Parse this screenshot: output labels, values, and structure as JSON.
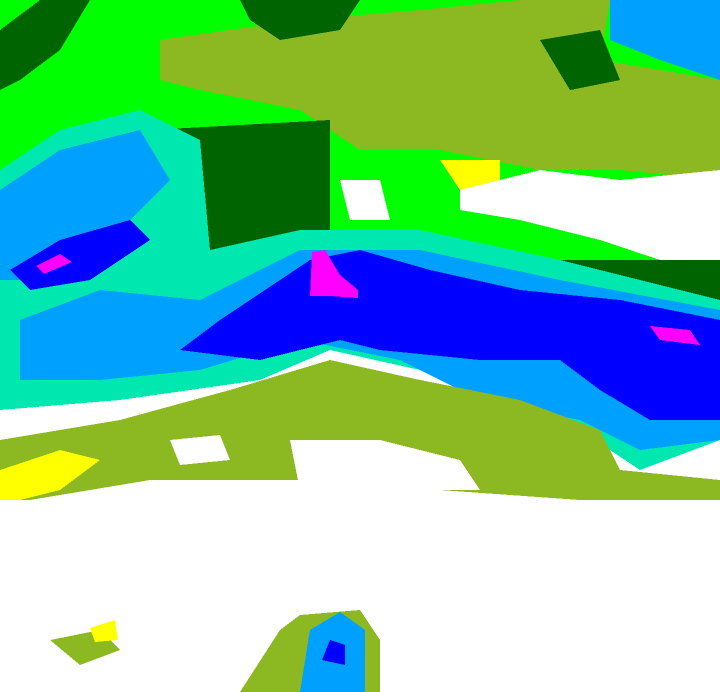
{
  "map": {
    "type": "precipitation-radar-intensity",
    "palette": {
      "none": "#ffffff",
      "very_light": "#ffff00",
      "light": "#8cb822",
      "light_moderate": "#00ff00",
      "moderate": "#006400",
      "moderate_heavy": "#00e8b0",
      "heavy": "#00a0ff",
      "very_heavy": "#0000ff",
      "extreme": "#ff00ff"
    }
  }
}
